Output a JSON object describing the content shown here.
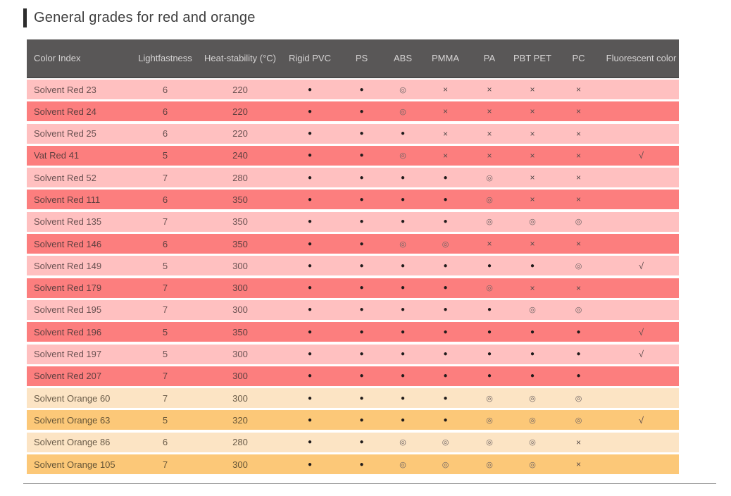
{
  "page": {
    "title": "General grades for red and orange"
  },
  "colors": {
    "header_bg": "#595757",
    "red_light": "#ffc0c0",
    "red_dark": "#fc7e7e",
    "orange_light": "#fce4c4",
    "orange_dark": "#fcc878",
    "title_text": "#3e3e3e",
    "header_text": "#d6d4d4"
  },
  "table": {
    "columns": [
      "Color Index",
      "Lightfastness",
      "Heat-stability (°C)",
      "Rigid PVC",
      "PS",
      "ABS",
      "PMMA",
      "PA",
      "PBT PET",
      "PC",
      "Fluorescent color"
    ],
    "symbols": {
      "solid_dot": "●",
      "open_circle": "◎",
      "cross": "×",
      "check": "√"
    },
    "rows": [
      {
        "color_index": "Solvent Red 23",
        "lightfastness": "6",
        "heat_stability": "220",
        "grades": [
          "●",
          "●",
          "◎",
          "×",
          "×",
          "×",
          "×"
        ],
        "fluorescent": "",
        "tone": "red-light"
      },
      {
        "color_index": "Solvent Red 24",
        "lightfastness": "6",
        "heat_stability": "220",
        "grades": [
          "●",
          "●",
          "◎",
          "×",
          "×",
          "×",
          "×"
        ],
        "fluorescent": "",
        "tone": "red-dark"
      },
      {
        "color_index": "Solvent Red 25",
        "lightfastness": "6",
        "heat_stability": "220",
        "grades": [
          "●",
          "●",
          "●",
          "×",
          "×",
          "×",
          "×"
        ],
        "fluorescent": "",
        "tone": "red-light"
      },
      {
        "color_index": "Vat Red 41",
        "lightfastness": "5",
        "heat_stability": "240",
        "grades": [
          "●",
          "●",
          "◎",
          "×",
          "×",
          "×",
          "×"
        ],
        "fluorescent": "√",
        "tone": "red-dark"
      },
      {
        "color_index": "Solvent Red 52",
        "lightfastness": "7",
        "heat_stability": "280",
        "grades": [
          "●",
          "●",
          "●",
          "●",
          "◎",
          "×",
          "×"
        ],
        "fluorescent": "",
        "tone": "red-light"
      },
      {
        "color_index": "Solvent Red 111",
        "lightfastness": "6",
        "heat_stability": "350",
        "grades": [
          "●",
          "●",
          "●",
          "●",
          "◎",
          "×",
          "×"
        ],
        "fluorescent": "",
        "tone": "red-dark"
      },
      {
        "color_index": "Solvent Red 135",
        "lightfastness": "7",
        "heat_stability": "350",
        "grades": [
          "●",
          "●",
          "●",
          "●",
          "◎",
          "◎",
          "◎"
        ],
        "fluorescent": "",
        "tone": "red-light"
      },
      {
        "color_index": "Solvent Red 146",
        "lightfastness": "6",
        "heat_stability": "350",
        "grades": [
          "●",
          "●",
          "◎",
          "◎",
          "×",
          "×",
          "×"
        ],
        "fluorescent": "",
        "tone": "red-dark"
      },
      {
        "color_index": "Solvent Red 149",
        "lightfastness": "5",
        "heat_stability": "300",
        "grades": [
          "●",
          "●",
          "●",
          "●",
          "●",
          "●",
          "◎"
        ],
        "fluorescent": "√",
        "tone": "red-light"
      },
      {
        "color_index": "Solvent Red 179",
        "lightfastness": "7",
        "heat_stability": "300",
        "grades": [
          "●",
          "●",
          "●",
          "●",
          "◎",
          "×",
          "×"
        ],
        "fluorescent": "",
        "tone": "red-dark"
      },
      {
        "color_index": "Solvent Red 195",
        "lightfastness": "7",
        "heat_stability": "300",
        "grades": [
          "●",
          "●",
          "●",
          "●",
          "●",
          "◎",
          "◎"
        ],
        "fluorescent": "",
        "tone": "red-light"
      },
      {
        "color_index": "Solvent Red 196",
        "lightfastness": "5",
        "heat_stability": "350",
        "grades": [
          "●",
          "●",
          "●",
          "●",
          "●",
          "●",
          "●"
        ],
        "fluorescent": "√",
        "tone": "red-dark"
      },
      {
        "color_index": "Solvent Red 197",
        "lightfastness": "5",
        "heat_stability": "300",
        "grades": [
          "●",
          "●",
          "●",
          "●",
          "●",
          "●",
          "●"
        ],
        "fluorescent": "√",
        "tone": "red-light"
      },
      {
        "color_index": "Solvent Red 207",
        "lightfastness": "7",
        "heat_stability": "300",
        "grades": [
          "●",
          "●",
          "●",
          "●",
          "●",
          "●",
          "●"
        ],
        "fluorescent": "",
        "tone": "red-dark"
      },
      {
        "color_index": "Solvent Orange 60",
        "lightfastness": "7",
        "heat_stability": "300",
        "grades": [
          "●",
          "●",
          "●",
          "●",
          "◎",
          "◎",
          "◎"
        ],
        "fluorescent": "",
        "tone": "orange-light"
      },
      {
        "color_index": "Solvent Orange 63",
        "lightfastness": "5",
        "heat_stability": "320",
        "grades": [
          "●",
          "●",
          "●",
          "●",
          "◎",
          "◎",
          "◎"
        ],
        "fluorescent": "√",
        "tone": "orange-dark"
      },
      {
        "color_index": "Solvent Orange 86",
        "lightfastness": "6",
        "heat_stability": "280",
        "grades": [
          "●",
          "●",
          "◎",
          "◎",
          "◎",
          "◎",
          "×"
        ],
        "fluorescent": "",
        "tone": "orange-light"
      },
      {
        "color_index": "Solvent Orange 105",
        "lightfastness": "7",
        "heat_stability": "300",
        "grades": [
          "●",
          "●",
          "◎",
          "◎",
          "◎",
          "◎",
          "×"
        ],
        "fluorescent": "",
        "tone": "orange-dark"
      }
    ]
  }
}
